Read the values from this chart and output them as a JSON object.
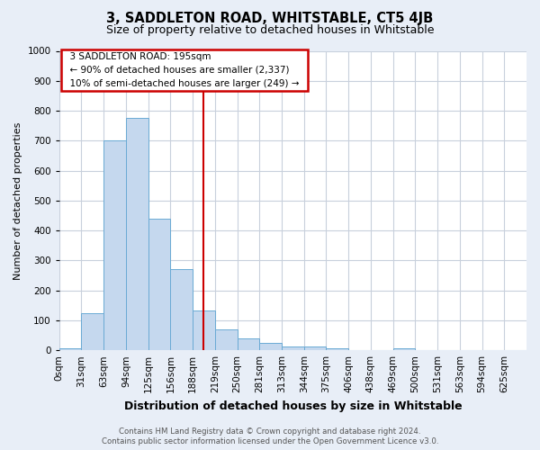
{
  "title": "3, SADDLETON ROAD, WHITSTABLE, CT5 4JB",
  "subtitle": "Size of property relative to detached houses in Whitstable",
  "xlabel": "Distribution of detached houses by size in Whitstable",
  "ylabel": "Number of detached properties",
  "footnote1": "Contains HM Land Registry data © Crown copyright and database right 2024.",
  "footnote2": "Contains public sector information licensed under the Open Government Licence v3.0.",
  "bar_labels": [
    "0sqm",
    "31sqm",
    "63sqm",
    "94sqm",
    "125sqm",
    "156sqm",
    "188sqm",
    "219sqm",
    "250sqm",
    "281sqm",
    "313sqm",
    "344sqm",
    "375sqm",
    "406sqm",
    "438sqm",
    "469sqm",
    "500sqm",
    "531sqm",
    "563sqm",
    "594sqm",
    "625sqm"
  ],
  "bar_values": [
    7,
    125,
    700,
    775,
    440,
    272,
    133,
    70,
    40,
    25,
    13,
    12,
    6,
    0,
    0,
    8,
    0,
    0,
    0,
    0,
    0
  ],
  "bar_color": "#c5d8ee",
  "bar_edge_color": "#6aaad4",
  "vline_x_index": 6.5,
  "vline_color": "#cc0000",
  "annotation_text": "  3 SADDLETON ROAD: 195sqm  \n  ← 90% of detached houses are smaller (2,337)  \n  10% of semi-detached houses are larger (249) →  ",
  "annotation_box_color": "#cc0000",
  "ylim": [
    0,
    1000
  ],
  "yticks": [
    0,
    100,
    200,
    300,
    400,
    500,
    600,
    700,
    800,
    900,
    1000
  ],
  "bg_color": "#e8eef7",
  "plot_bg_color": "#ffffff",
  "grid_color": "#c8d0dc",
  "title_fontsize": 10.5,
  "subtitle_fontsize": 9,
  "ylabel_fontsize": 8,
  "xlabel_fontsize": 9,
  "tick_fontsize": 7.5
}
